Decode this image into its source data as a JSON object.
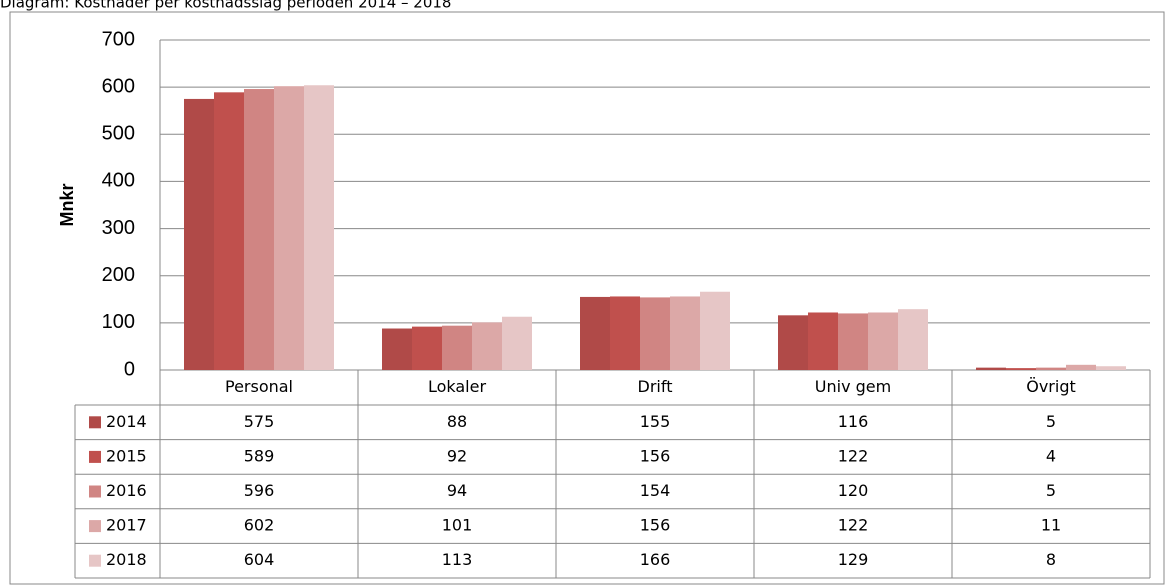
{
  "chart_data": {
    "type": "bar",
    "title": "Diagram: Kostnader per kostnadsslag perioden 2014 – 2018",
    "y_label": "Mnkr",
    "categories": [
      "Personal",
      "Lokaler",
      "Drift",
      "Univ gem",
      "Övrigt"
    ],
    "series": [
      {
        "name": "2014",
        "color": "#b04a48",
        "values": [
          575,
          88,
          155,
          116,
          5
        ]
      },
      {
        "name": "2015",
        "color": "#c0504d",
        "values": [
          589,
          92,
          156,
          122,
          4
        ]
      },
      {
        "name": "2016",
        "color": "#d08583",
        "values": [
          596,
          94,
          154,
          120,
          5
        ]
      },
      {
        "name": "2017",
        "color": "#dca8a7",
        "values": [
          602,
          101,
          156,
          122,
          11
        ]
      },
      {
        "name": "2018",
        "color": "#e6c6c6",
        "values": [
          604,
          113,
          166,
          129,
          8
        ]
      }
    ],
    "ylim": [
      0,
      700
    ],
    "yticks": [
      0,
      100,
      200,
      300,
      400,
      500,
      600,
      700
    ],
    "grid": true
  }
}
